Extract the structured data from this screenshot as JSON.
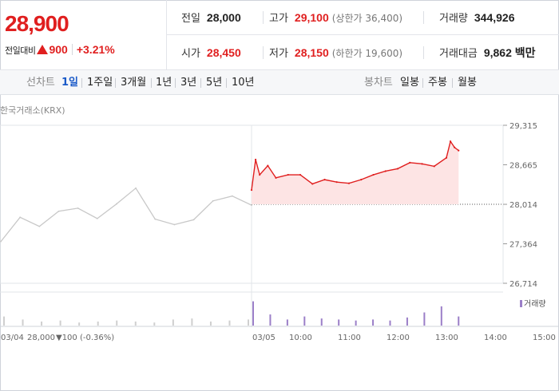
{
  "summary": {
    "current_price": "28,900",
    "change_label": "전일대비",
    "change_abs": "900",
    "change_pct": "+3.21%",
    "prev_close_label": "전일",
    "prev_close": "28,000",
    "open_label": "시가",
    "open": "28,450",
    "high_label": "고가",
    "high": "29,100",
    "upper_limit": "(상한가 36,400)",
    "low_label": "저가",
    "low": "28,150",
    "lower_limit": "(하한가 19,600)",
    "volume_label": "거래량",
    "volume": "344,926",
    "amount_label": "거래대금",
    "amount": "9,862 백만"
  },
  "period_bar": {
    "line_label": "선차트",
    "line_items": [
      "1일",
      "1주일",
      "3개월",
      "1년",
      "3년",
      "5년",
      "10년"
    ],
    "active_line": "1일",
    "candle_label": "봉차트",
    "candle_items": [
      "일봉",
      "주봉",
      "월봉"
    ]
  },
  "source": "한국거래소(KRX)",
  "legend_volume": "거래량",
  "prev_day_info": {
    "date": "03/04",
    "close": "28,000",
    "change": "▼100 (-0.36%)"
  },
  "colors": {
    "up": "#e01f1f",
    "down": "#1a5ac8",
    "prev_day_line": "#c8c8c8",
    "today_fill": "#fde4e4",
    "volume_prev": "#cfcfcf",
    "volume_today": "#9b7fc8"
  },
  "chart_data": {
    "type": "line",
    "title": "",
    "y_ticks": [
      "29,315",
      "28,665",
      "28,014",
      "27,364",
      "26,714"
    ],
    "ylim": [
      26714,
      29315
    ],
    "baseline": 28014,
    "x_ticks": [
      "03/04",
      "03/05",
      "10:00",
      "11:00",
      "12:00",
      "13:00",
      "14:00",
      "15:00"
    ],
    "series": [
      {
        "x": [
          "03/04 09:00",
          "03/04 09:30",
          "03/04 10:00",
          "03/04 10:30",
          "03/04 11:00",
          "03/04 11:30",
          "03/04 12:00",
          "03/04 12:30",
          "03/04 13:00",
          "03/04 13:30",
          "03/04 14:00",
          "03/04 14:30",
          "03/04 15:00",
          "03/04 15:30"
        ],
        "values": [
          27400,
          27800,
          27650,
          27900,
          27950,
          27780,
          28020,
          28280,
          27770,
          27680,
          27760,
          28070,
          28150,
          28000
        ]
      },
      {
        "x": [
          "09:00",
          "09:05",
          "09:10",
          "09:20",
          "09:30",
          "09:45",
          "10:00",
          "10:15",
          "10:30",
          "10:45",
          "11:00",
          "11:15",
          "11:30",
          "11:45",
          "12:00",
          "12:15",
          "12:30",
          "12:45",
          "13:00",
          "13:05",
          "13:10",
          "13:15"
        ],
        "values": [
          28250,
          28750,
          28500,
          28650,
          28450,
          28500,
          28500,
          28350,
          28420,
          28380,
          28360,
          28420,
          28500,
          28560,
          28600,
          28700,
          28680,
          28640,
          28780,
          29050,
          28950,
          28900
        ]
      }
    ],
    "volume": {
      "values": [
        9,
        6,
        4,
        5,
        3,
        4,
        5,
        4,
        3,
        6,
        7,
        4,
        5,
        6,
        24,
        11,
        6,
        9,
        7,
        6,
        5,
        6,
        5,
        8,
        13,
        19,
        9
      ],
      "ylim": [
        0,
        30
      ]
    }
  }
}
